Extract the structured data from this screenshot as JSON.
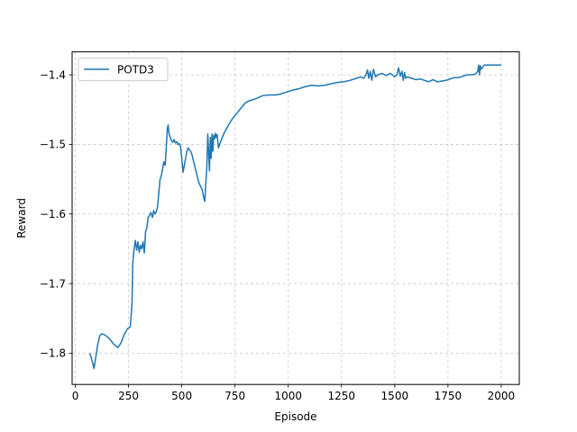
{
  "chart_data": {
    "type": "line",
    "title": "",
    "xlabel": "Episode",
    "ylabel": "Reward",
    "xlim": [
      -15,
      2085
    ],
    "ylim": [
      -1.845,
      -1.367
    ],
    "xticks": [
      0,
      250,
      500,
      750,
      1000,
      1250,
      1500,
      1750,
      2000
    ],
    "xtick_labels": [
      "0",
      "250",
      "500",
      "750",
      "1000",
      "1250",
      "1500",
      "1750",
      "2000"
    ],
    "yticks": [
      -1.8,
      -1.7,
      -1.6,
      -1.5,
      -1.4
    ],
    "ytick_labels": [
      "−1.8",
      "−1.7",
      "−1.6",
      "−1.5",
      "−1.4"
    ],
    "grid": true,
    "legend": {
      "position": "upper-left",
      "entries": [
        "POTD3"
      ]
    },
    "series": [
      {
        "name": "POTD3",
        "color": "#1f77b4",
        "x": [
          68,
          80,
          88,
          95,
          105,
          115,
          125,
          140,
          160,
          180,
          200,
          215,
          230,
          245,
          258,
          266,
          270,
          276,
          282,
          288,
          294,
          300,
          306,
          312,
          318,
          324,
          330,
          336,
          342,
          348,
          355,
          362,
          368,
          374,
          380,
          386,
          392,
          398,
          404,
          410,
          416,
          422,
          428,
          432,
          436,
          440,
          446,
          452,
          458,
          464,
          470,
          476,
          482,
          488,
          494,
          500,
          506,
          512,
          518,
          524,
          530,
          536,
          542,
          548,
          556,
          564,
          572,
          580,
          588,
          596,
          602,
          608,
          612,
          618,
          622,
          626,
          630,
          634,
          638,
          642,
          646,
          650,
          654,
          658,
          662,
          666,
          672,
          680,
          690,
          700,
          720,
          740,
          760,
          780,
          800,
          820,
          850,
          880,
          910,
          940,
          960,
          990,
          1020,
          1050,
          1080,
          1110,
          1140,
          1170,
          1200,
          1230,
          1260,
          1290,
          1320,
          1340,
          1355,
          1365,
          1372,
          1378,
          1385,
          1392,
          1400,
          1410,
          1420,
          1440,
          1460,
          1480,
          1500,
          1510,
          1518,
          1526,
          1534,
          1540,
          1546,
          1552,
          1560,
          1580,
          1600,
          1620,
          1640,
          1660,
          1680,
          1700,
          1720,
          1740,
          1760,
          1780,
          1800,
          1820,
          1840,
          1860,
          1880,
          1890,
          1894,
          1898,
          1902,
          1906,
          1920,
          1950,
          1980,
          2000
        ],
        "y": [
          -1.8,
          -1.812,
          -1.822,
          -1.808,
          -1.788,
          -1.775,
          -1.772,
          -1.774,
          -1.779,
          -1.787,
          -1.792,
          -1.785,
          -1.773,
          -1.765,
          -1.762,
          -1.73,
          -1.67,
          -1.65,
          -1.638,
          -1.652,
          -1.64,
          -1.655,
          -1.645,
          -1.65,
          -1.64,
          -1.656,
          -1.625,
          -1.62,
          -1.605,
          -1.602,
          -1.598,
          -1.605,
          -1.595,
          -1.6,
          -1.597,
          -1.59,
          -1.57,
          -1.55,
          -1.545,
          -1.535,
          -1.525,
          -1.53,
          -1.5,
          -1.478,
          -1.472,
          -1.485,
          -1.49,
          -1.495,
          -1.497,
          -1.493,
          -1.498,
          -1.496,
          -1.5,
          -1.499,
          -1.503,
          -1.52,
          -1.54,
          -1.53,
          -1.52,
          -1.51,
          -1.505,
          -1.508,
          -1.51,
          -1.515,
          -1.525,
          -1.535,
          -1.545,
          -1.555,
          -1.56,
          -1.565,
          -1.575,
          -1.582,
          -1.56,
          -1.53,
          -1.485,
          -1.51,
          -1.538,
          -1.49,
          -1.52,
          -1.485,
          -1.51,
          -1.487,
          -1.492,
          -1.484,
          -1.49,
          -1.486,
          -1.505,
          -1.498,
          -1.49,
          -1.483,
          -1.472,
          -1.462,
          -1.455,
          -1.447,
          -1.44,
          -1.437,
          -1.434,
          -1.43,
          -1.429,
          -1.429,
          -1.428,
          -1.425,
          -1.422,
          -1.42,
          -1.417,
          -1.415,
          -1.416,
          -1.415,
          -1.413,
          -1.411,
          -1.41,
          -1.408,
          -1.405,
          -1.403,
          -1.405,
          -1.4,
          -1.393,
          -1.405,
          -1.395,
          -1.408,
          -1.392,
          -1.403,
          -1.4,
          -1.398,
          -1.401,
          -1.398,
          -1.403,
          -1.4,
          -1.39,
          -1.402,
          -1.395,
          -1.408,
          -1.397,
          -1.405,
          -1.403,
          -1.405,
          -1.407,
          -1.406,
          -1.408,
          -1.41,
          -1.407,
          -1.41,
          -1.409,
          -1.408,
          -1.406,
          -1.404,
          -1.404,
          -1.402,
          -1.4,
          -1.4,
          -1.399,
          -1.395,
          -1.386,
          -1.4,
          -1.387,
          -1.392,
          -1.386,
          -1.386,
          -1.386,
          -1.386
        ]
      }
    ]
  }
}
